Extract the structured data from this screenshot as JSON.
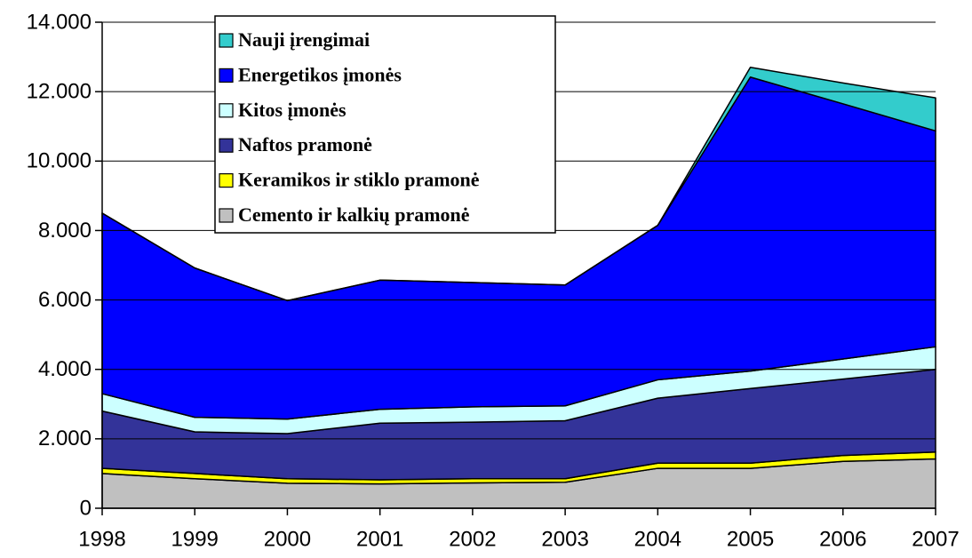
{
  "chart_data": {
    "type": "stacked_area",
    "categories": [
      "1998",
      "1999",
      "2000",
      "2001",
      "2002",
      "2003",
      "2004",
      "2005",
      "2006",
      "2007"
    ],
    "series": [
      {
        "name": "Cemento ir kalkių pramonė",
        "color": "#c0c0c0",
        "values": [
          1000,
          850,
          720,
          700,
          730,
          750,
          1150,
          1150,
          1350,
          1420
        ]
      },
      {
        "name": "Keramikos ir stiklo pramonė",
        "color": "#ffff00",
        "values": [
          150,
          150,
          130,
          120,
          120,
          100,
          150,
          150,
          170,
          200
        ]
      },
      {
        "name": "Naftos pramonė",
        "color": "#333399",
        "values": [
          1650,
          1200,
          1300,
          1630,
          1630,
          1670,
          1870,
          2150,
          2200,
          2380
        ]
      },
      {
        "name": "Kitos įmonės",
        "color": "#ccffff",
        "values": [
          500,
          420,
          420,
          400,
          440,
          430,
          530,
          500,
          580,
          650
        ]
      },
      {
        "name": "Energetikos įmonės",
        "color": "#0000ff",
        "values": [
          5200,
          4300,
          3410,
          3720,
          3580,
          3480,
          4450,
          8470,
          7350,
          6220
        ]
      },
      {
        "name": "Nauji įrengimai",
        "color": "#33cccc",
        "values": [
          0,
          0,
          0,
          0,
          0,
          0,
          0,
          280,
          600,
          950
        ]
      }
    ],
    "ylim": [
      0,
      14000
    ],
    "yticks": [
      0,
      {
        "value": 2000,
        "label": "2.000"
      },
      {
        "value": 4000,
        "label": "4.000"
      },
      {
        "value": 6000,
        "label": "6.000"
      },
      {
        "value": 8000,
        "label": "8.000"
      },
      {
        "value": 10000,
        "label": "10.000"
      },
      {
        "value": 12000,
        "label": "12.000"
      },
      {
        "value": 14000,
        "label": "14.000"
      }
    ],
    "grid": true
  }
}
